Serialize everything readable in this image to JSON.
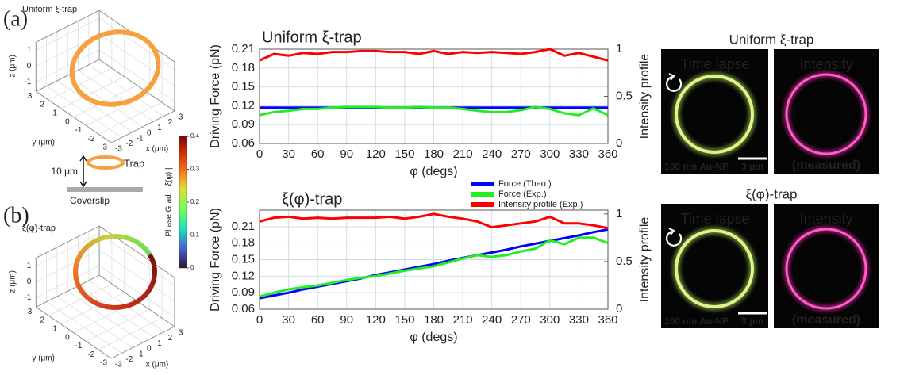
{
  "panel_labels": [
    "(a)",
    "(b)"
  ],
  "plots3d": [
    {
      "title": "Uniform ξ-trap",
      "z_label": "z (μm)",
      "y_label": "y (μm)",
      "x_label": "x (μm)",
      "zticks": [
        1,
        0,
        -1
      ],
      "yticks": [
        3,
        2,
        1,
        0,
        -1,
        -2,
        -3
      ],
      "xticks": [
        -3,
        -2,
        -1,
        0,
        1,
        2,
        3
      ]
    },
    {
      "title": "ξ(φ)-trap",
      "z_label": "z (μm)",
      "y_label": "y (μm)",
      "x_label": "x (μm)",
      "zticks": [
        1,
        0,
        -1
      ],
      "yticks": [
        3,
        2,
        1,
        0,
        -1,
        -2,
        -3
      ],
      "xticks": [
        -3,
        -2,
        -1,
        0,
        1,
        2,
        3
      ]
    }
  ],
  "colorbar": {
    "label": "Phase Grad. | ξ(φ) |",
    "ticks": [
      0,
      0.1,
      0.2,
      0.3,
      0.4
    ]
  },
  "schematic": {
    "distance": "10 μm",
    "trap": "Trap",
    "surface": "Coverslip"
  },
  "chart_data": [
    {
      "type": "line",
      "title": "Uniform ξ-trap",
      "xlabel": "φ (degs)",
      "ylabel": "Driving Force (pN)",
      "y2label": "Intensity profile",
      "x": [
        0,
        15,
        30,
        45,
        60,
        75,
        90,
        105,
        120,
        135,
        150,
        165,
        180,
        195,
        210,
        225,
        240,
        255,
        270,
        285,
        300,
        315,
        330,
        345,
        360
      ],
      "xlim": [
        0,
        360
      ],
      "xticks": [
        0,
        30,
        60,
        90,
        120,
        150,
        180,
        210,
        240,
        270,
        300,
        330,
        360
      ],
      "ylim": [
        0.06,
        0.21
      ],
      "yticks": [
        0.06,
        0.09,
        0.12,
        0.15,
        0.18,
        0.21
      ],
      "y2lim": [
        0,
        1
      ],
      "y2ticks": [
        0,
        0.5,
        1
      ],
      "grid": true,
      "series": [
        {
          "color": "#0000ff",
          "values": [
            0.117,
            0.117,
            0.117,
            0.117,
            0.117,
            0.117,
            0.117,
            0.117,
            0.117,
            0.117,
            0.117,
            0.117,
            0.117,
            0.117,
            0.117,
            0.117,
            0.117,
            0.117,
            0.117,
            0.117,
            0.117,
            0.117,
            0.117,
            0.117,
            0.117
          ]
        },
        {
          "color": "#22ee22",
          "values": [
            0.105,
            0.11,
            0.112,
            0.115,
            0.115,
            0.117,
            0.118,
            0.118,
            0.118,
            0.117,
            0.117,
            0.118,
            0.117,
            0.117,
            0.115,
            0.112,
            0.11,
            0.11,
            0.113,
            0.118,
            0.115,
            0.108,
            0.105,
            0.116,
            0.105
          ]
        },
        {
          "color": "#ff0000",
          "axis": "y2",
          "values": [
            0.88,
            0.95,
            0.93,
            0.96,
            0.95,
            0.97,
            0.97,
            0.98,
            0.98,
            0.97,
            0.97,
            0.95,
            0.98,
            0.95,
            0.97,
            0.96,
            0.97,
            0.96,
            0.95,
            0.97,
            1,
            0.93,
            0.96,
            0.92,
            0.88
          ]
        }
      ]
    },
    {
      "type": "line",
      "title": "ξ(φ)-trap",
      "xlabel": "φ (degs)",
      "ylabel": "Driving Force (pN)",
      "y2label": "Intensity profile",
      "x": [
        0,
        15,
        30,
        45,
        60,
        75,
        90,
        105,
        120,
        135,
        150,
        165,
        180,
        195,
        210,
        225,
        240,
        255,
        270,
        285,
        300,
        315,
        330,
        345,
        360
      ],
      "xlim": [
        0,
        360
      ],
      "xticks": [
        0,
        30,
        60,
        90,
        120,
        150,
        180,
        210,
        240,
        270,
        300,
        330,
        360
      ],
      "ylim": [
        0.06,
        0.24
      ],
      "yticks": [
        0.06,
        0.09,
        0.12,
        0.15,
        0.18,
        0.21
      ],
      "y2lim": [
        0,
        1.04
      ],
      "y2ticks": [
        0,
        0.5,
        1
      ],
      "grid": true,
      "legend": "top-center",
      "series": [
        {
          "name": "Force (Theo.)",
          "color": "#0000ff",
          "values": [
            0.08,
            0.085,
            0.09,
            0.096,
            0.101,
            0.106,
            0.111,
            0.116,
            0.122,
            0.127,
            0.132,
            0.137,
            0.142,
            0.148,
            0.153,
            0.158,
            0.163,
            0.168,
            0.174,
            0.179,
            0.184,
            0.189,
            0.194,
            0.2,
            0.205
          ]
        },
        {
          "name": "Force (Exp.)",
          "color": "#22ee22",
          "values": [
            0.083,
            0.09,
            0.096,
            0.1,
            0.103,
            0.108,
            0.113,
            0.117,
            0.12,
            0.125,
            0.13,
            0.134,
            0.138,
            0.145,
            0.152,
            0.158,
            0.155,
            0.158,
            0.165,
            0.17,
            0.185,
            0.178,
            0.19,
            0.19,
            0.18
          ]
        },
        {
          "name": "Intensity profile (Exp.)",
          "color": "#ff0000",
          "axis": "y2",
          "values": [
            0.92,
            0.96,
            0.97,
            0.95,
            0.96,
            0.95,
            0.96,
            0.96,
            0.96,
            0.97,
            0.95,
            0.97,
            1,
            0.97,
            0.95,
            0.92,
            0.86,
            0.88,
            0.9,
            0.92,
            0.97,
            0.9,
            0.9,
            0.88,
            0.85
          ]
        }
      ]
    }
  ],
  "images": [
    {
      "title": "Uniform ξ-trap",
      "left": "Time lapse",
      "right": "Intensity",
      "particle": "100 nm Au-NP",
      "scale": "3 μm",
      "note": "(measured)"
    },
    {
      "title": "ξ(φ)-trap",
      "left": "Time lapse",
      "right": "Intensity",
      "particle": "100 nm Au-NP",
      "scale": "3 μm",
      "note": "(measured)"
    }
  ]
}
